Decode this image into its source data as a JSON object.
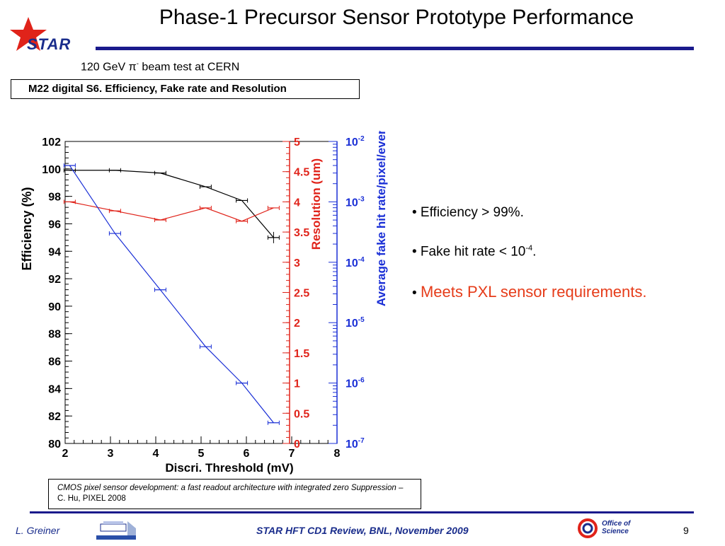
{
  "slide": {
    "title": "Phase-1 Precursor Sensor Prototype Performance",
    "logo_text": "STAR",
    "subtitle_pre": "120 GeV π",
    "subtitle_sup": "-",
    "subtitle_post": " beam test at CERN",
    "plot_title": "M22 digital S6. Efficiency, Fake rate and Resolution",
    "bullets": {
      "b1": "• Efficiency  > 99%.",
      "b2_pre": "• Fake hit rate < 10",
      "b2_sup": "-4",
      "b2_post": ".",
      "b3_dot": "• ",
      "b3_text": "Meets PXL sensor requirements."
    },
    "reference": {
      "italic": "CMOS pixel sensor development: a fast readout architecture with integrated zero Suppression",
      "plain": " – C. Hu,  PIXEL 2008"
    },
    "footer": {
      "author": "L. Greiner",
      "event": "STAR HFT CD1 Review, BNL, November 2009",
      "page": "9",
      "doe_line1": "Office of",
      "doe_line2": "Science"
    }
  },
  "chart_data": {
    "type": "line",
    "xlabel": "Discri. Threshold (mV)",
    "xlim": [
      2,
      8
    ],
    "x_ticks": [
      "2",
      "3",
      "4",
      "5",
      "6",
      "7",
      "8"
    ],
    "axes": {
      "efficiency": {
        "label": "Efficiency (%)",
        "ylim": [
          80,
          102
        ],
        "color": "#000000",
        "ticks": [
          "80",
          "82",
          "84",
          "86",
          "88",
          "90",
          "92",
          "94",
          "96",
          "98",
          "100",
          "102"
        ]
      },
      "resolution": {
        "label": "Resolution (um)",
        "ylim": [
          0,
          5
        ],
        "color": "#e0231a",
        "ticks": [
          "0",
          "0.5",
          "1",
          "1.5",
          "2",
          "2.5",
          "3",
          "3.5",
          "4",
          "4.5",
          "5"
        ]
      },
      "fake_rate": {
        "label": "Average fake hit rate/pixel/event",
        "ylim": [
          1e-07,
          0.01
        ],
        "scale": "log",
        "color": "#1a2fd6",
        "ticks": [
          {
            "base": "10",
            "exp": "-7"
          },
          {
            "base": "10",
            "exp": "-6"
          },
          {
            "base": "10",
            "exp": "-5"
          },
          {
            "base": "10",
            "exp": "-4"
          },
          {
            "base": "10",
            "exp": "-3"
          },
          {
            "base": "10",
            "exp": "-2"
          }
        ]
      }
    },
    "series": [
      {
        "axis": "efficiency",
        "color": "#000000",
        "x": [
          2.1,
          3.1,
          4.1,
          5.1,
          5.9,
          6.6
        ],
        "y": [
          99.9,
          99.9,
          99.7,
          98.7,
          97.7,
          95.0
        ]
      },
      {
        "axis": "resolution",
        "color": "#e0231a",
        "x": [
          2.1,
          3.1,
          4.1,
          5.1,
          5.9,
          6.6
        ],
        "y": [
          4.0,
          3.85,
          3.7,
          3.9,
          3.68,
          3.9
        ]
      },
      {
        "axis": "fake_rate",
        "color": "#1a2fd6",
        "scale": "log",
        "x": [
          2.1,
          3.1,
          4.1,
          5.1,
          5.9,
          6.6
        ],
        "y": [
          0.004,
          0.0003,
          3.5e-05,
          4e-06,
          1e-06,
          2.2e-07
        ]
      }
    ]
  }
}
